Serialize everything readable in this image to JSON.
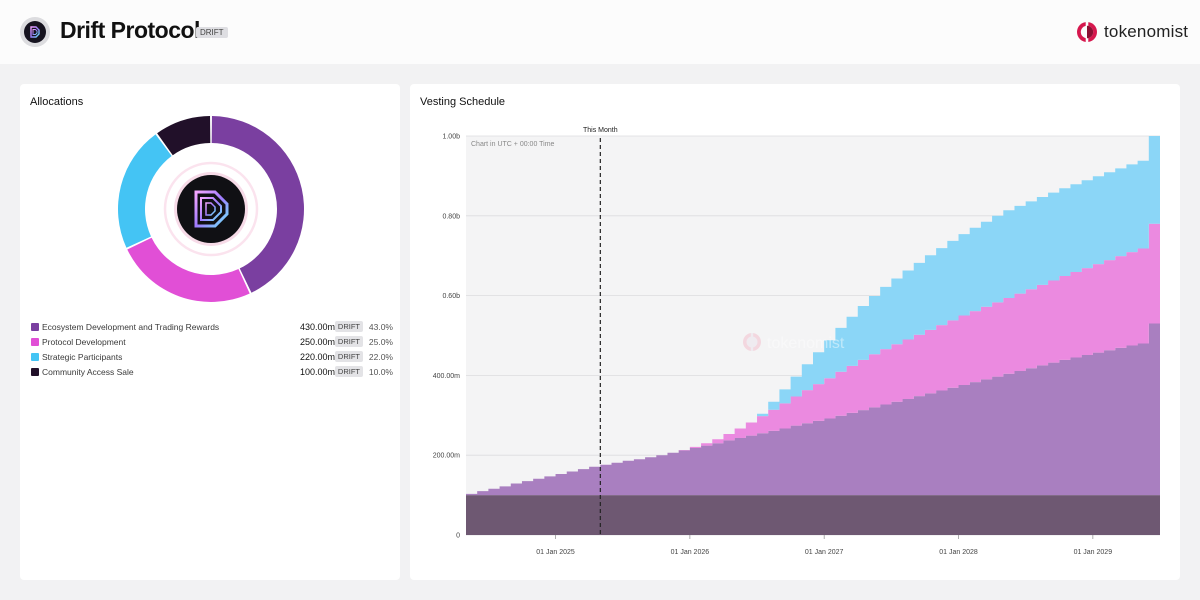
{
  "header": {
    "project_name": "Drift Protocol",
    "ticker": "DRIFT",
    "brand": "tokenomist",
    "project_icon": "drift-logo-icon",
    "brand_icon": "tokenomist-logo-icon"
  },
  "allocations": {
    "title": "Allocations",
    "items": [
      {
        "name": "Ecosystem Development and Trading Rewards",
        "amount": "430.00m",
        "unit": "DRIFT",
        "pct": "43.0%",
        "value": 430,
        "color": "#7a3fa0"
      },
      {
        "name": "Protocol Development",
        "amount": "250.00m",
        "unit": "DRIFT",
        "pct": "25.0%",
        "value": 250,
        "color": "#e14fd6"
      },
      {
        "name": "Strategic Participants",
        "amount": "220.00m",
        "unit": "DRIFT",
        "pct": "22.0%",
        "value": 220,
        "color": "#44c4f4"
      },
      {
        "name": "Community Access Sale",
        "amount": "100.00m",
        "unit": "DRIFT",
        "pct": "10.0%",
        "value": 100,
        "color": "#211029"
      }
    ]
  },
  "vesting": {
    "title": "Vesting Schedule",
    "this_month_label": "This Month",
    "timezone_note": "Chart in UTC + 00:00 Time",
    "watermark": "tokenomist"
  },
  "chart_data": {
    "type": "area",
    "stacked": true,
    "step": true,
    "title": "Vesting Schedule",
    "x_start": "2024-05",
    "x_interval": "monthly",
    "x_ticks": [
      "01 Jan 2025",
      "01 Jan 2026",
      "01 Jan 2027",
      "01 Jan 2028",
      "01 Jan 2029"
    ],
    "y_ticks": [
      "0",
      "200.00m",
      "400.00m",
      "0.60b",
      "0.80b",
      "1.00b"
    ],
    "ylim": [
      0,
      1000
    ],
    "y_unit": "m DRIFT",
    "this_month": "2025-05",
    "grid": true,
    "series": [
      {
        "name": "Community Access Sale",
        "color": "#6e5872",
        "values": [
          100,
          100,
          100,
          100,
          100,
          100,
          100,
          100,
          100,
          100,
          100,
          100,
          100,
          100,
          100,
          100,
          100,
          100,
          100,
          100,
          100,
          100,
          100,
          100,
          100,
          100,
          100,
          100,
          100,
          100,
          100,
          100,
          100,
          100,
          100,
          100,
          100,
          100,
          100,
          100,
          100,
          100,
          100,
          100,
          100,
          100,
          100,
          100,
          100,
          100,
          100,
          100,
          100,
          100,
          100,
          100,
          100,
          100,
          100,
          100,
          100,
          100
        ]
      },
      {
        "name": "Ecosystem Development and Trading Rewards",
        "color": "#a97fc0",
        "values": [
          3,
          10,
          16,
          22,
          29,
          35,
          41,
          47,
          53,
          59,
          65,
          71,
          76,
          81,
          86,
          90,
          95,
          100,
          106,
          112,
          118,
          124,
          130,
          137,
          143,
          149,
          155,
          161,
          167,
          174,
          180,
          186,
          192,
          199,
          206,
          213,
          220,
          227,
          234,
          241,
          248,
          255,
          262,
          269,
          276,
          283,
          290,
          297,
          304,
          311,
          318,
          325,
          332,
          339,
          345,
          351,
          357,
          363,
          369,
          375,
          380,
          430
        ]
      },
      {
        "name": "Protocol Development",
        "color": "#eb8ae0",
        "values": [
          0,
          0,
          0,
          0,
          0,
          0,
          0,
          0,
          0,
          0,
          0,
          0,
          0,
          0,
          0,
          0,
          0,
          0,
          0,
          1,
          3,
          6,
          10,
          16,
          24,
          33,
          43,
          53,
          63,
          73,
          83,
          92,
          101,
          110,
          118,
          126,
          133,
          139,
          144,
          149,
          154,
          159,
          164,
          169,
          174,
          178,
          182,
          186,
          190,
          194,
          198,
          202,
          206,
          210,
          214,
          218,
          222,
          226,
          230,
          234,
          238,
          250
        ]
      },
      {
        "name": "Strategic Participants",
        "color": "#8bd6f7",
        "values": [
          0,
          0,
          0,
          0,
          0,
          0,
          0,
          0,
          0,
          0,
          0,
          0,
          0,
          0,
          0,
          0,
          0,
          0,
          0,
          0,
          0,
          0,
          0,
          0,
          0,
          0,
          6,
          20,
          35,
          50,
          65,
          80,
          95,
          110,
          123,
          135,
          146,
          156,
          165,
          173,
          180,
          187,
          193,
          199,
          204,
          209,
          213,
          217,
          220,
          220,
          220,
          220,
          220,
          220,
          220,
          220,
          220,
          220,
          220,
          220,
          220,
          220
        ]
      }
    ]
  }
}
